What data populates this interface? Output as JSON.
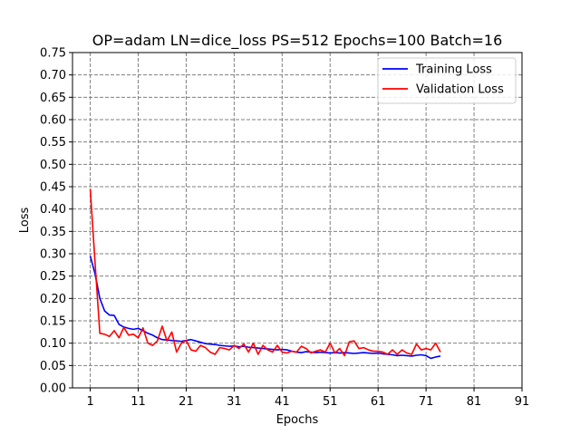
{
  "chart_data": {
    "type": "line",
    "title": "OP=adam LN=dice_loss PS=512 Epochs=100 Batch=16",
    "xlabel": "Epochs",
    "ylabel": "Loss",
    "xlim": [
      -2.7,
      91
    ],
    "ylim": [
      0,
      0.75
    ],
    "xticks": [
      "1",
      "11",
      "21",
      "31",
      "41",
      "51",
      "61",
      "71",
      "81",
      "91"
    ],
    "yticks": [
      "0.00",
      "0.05",
      "0.10",
      "0.15",
      "0.20",
      "0.25",
      "0.30",
      "0.35",
      "0.40",
      "0.45",
      "0.50",
      "0.55",
      "0.60",
      "0.65",
      "0.70",
      "0.75"
    ],
    "grid": true,
    "legend_position": "top-right",
    "x": [
      1,
      2,
      3,
      4,
      5,
      6,
      7,
      8,
      9,
      10,
      11,
      12,
      13,
      14,
      15,
      16,
      17,
      18,
      19,
      20,
      21,
      22,
      23,
      24,
      25,
      26,
      27,
      28,
      29,
      30,
      31,
      32,
      33,
      34,
      35,
      36,
      37,
      38,
      39,
      40,
      41,
      42,
      43,
      44,
      45,
      46,
      47,
      48,
      49,
      50,
      51,
      52,
      53,
      54,
      55,
      56,
      57,
      58,
      59,
      60,
      61,
      62,
      63,
      64,
      65,
      66,
      67,
      68,
      69,
      70,
      71,
      72,
      73,
      74
    ],
    "series": [
      {
        "name": "Training Loss",
        "color": "#0000ff",
        "values": [
          0.295,
          0.255,
          0.2,
          0.172,
          0.163,
          0.162,
          0.142,
          0.136,
          0.133,
          0.131,
          0.133,
          0.128,
          0.122,
          0.118,
          0.112,
          0.108,
          0.107,
          0.106,
          0.105,
          0.104,
          0.106,
          0.108,
          0.105,
          0.102,
          0.099,
          0.098,
          0.097,
          0.095,
          0.094,
          0.093,
          0.094,
          0.092,
          0.093,
          0.091,
          0.09,
          0.089,
          0.088,
          0.087,
          0.086,
          0.085,
          0.086,
          0.085,
          0.082,
          0.08,
          0.079,
          0.081,
          0.08,
          0.079,
          0.08,
          0.079,
          0.078,
          0.079,
          0.078,
          0.079,
          0.078,
          0.077,
          0.078,
          0.079,
          0.078,
          0.077,
          0.078,
          0.076,
          0.075,
          0.074,
          0.072,
          0.073,
          0.072,
          0.071,
          0.073,
          0.074,
          0.072,
          0.066,
          0.069,
          0.071
        ]
      },
      {
        "name": "Validation Loss",
        "color": "#ff0000",
        "values": [
          0.445,
          0.28,
          0.122,
          0.12,
          0.115,
          0.128,
          0.112,
          0.135,
          0.118,
          0.12,
          0.112,
          0.134,
          0.1,
          0.095,
          0.105,
          0.138,
          0.105,
          0.125,
          0.08,
          0.1,
          0.106,
          0.085,
          0.082,
          0.095,
          0.09,
          0.08,
          0.075,
          0.09,
          0.088,
          0.085,
          0.095,
          0.088,
          0.098,
          0.08,
          0.1,
          0.075,
          0.095,
          0.085,
          0.08,
          0.095,
          0.08,
          0.078,
          0.082,
          0.08,
          0.093,
          0.088,
          0.078,
          0.082,
          0.085,
          0.08,
          0.1,
          0.078,
          0.088,
          0.072,
          0.103,
          0.105,
          0.088,
          0.09,
          0.085,
          0.082,
          0.082,
          0.08,
          0.075,
          0.085,
          0.075,
          0.085,
          0.078,
          0.075,
          0.098,
          0.085,
          0.088,
          0.085,
          0.1,
          0.08
        ]
      }
    ]
  }
}
